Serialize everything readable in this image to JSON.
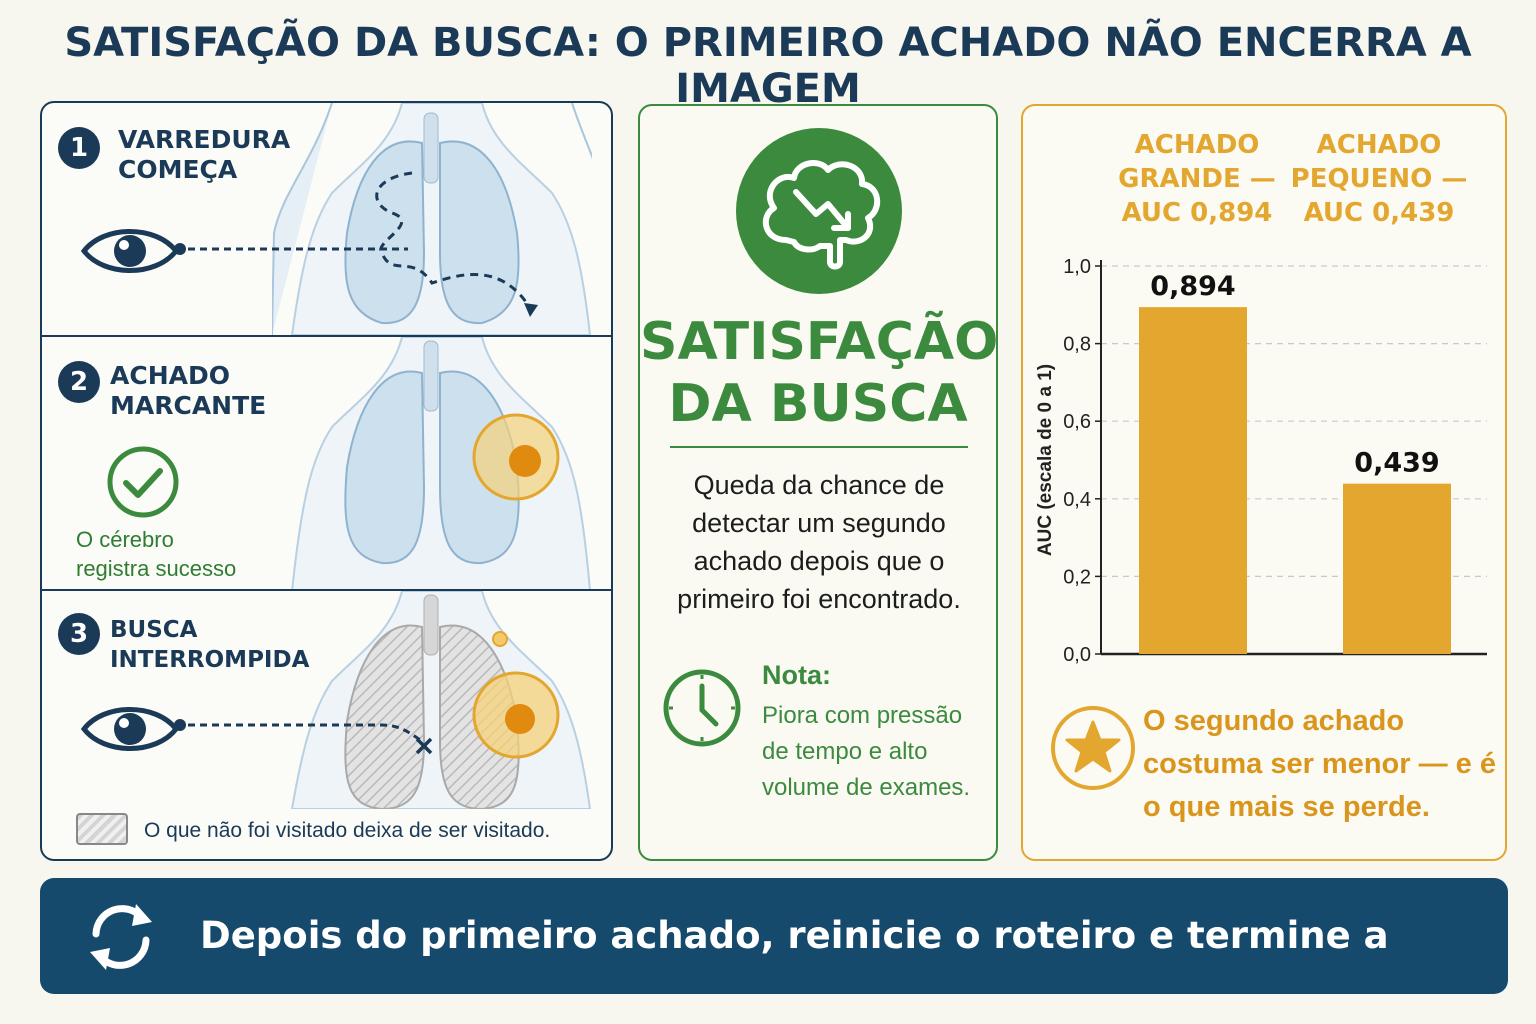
{
  "title": "SATISFAÇÃO DA BUSCA: O PRIMEIRO ACHADO NÃO ENCERRA A IMAGEM",
  "steps": [
    {
      "number": "1",
      "label": "VARREDURA\nCOMEÇA",
      "icon": "eye-icon"
    },
    {
      "number": "2",
      "label": "ACHADO\nMARCANTE",
      "icon": "check-circle-icon",
      "caption": "O cérebro\nregistra sucesso"
    },
    {
      "number": "3",
      "label": "BUSCA\nINTERROMPIDA",
      "icon": "eye-icon"
    }
  ],
  "legend": {
    "text": "O que não foi visitado deixa de ser visitado."
  },
  "middle": {
    "title": "SATISFAÇÃO\nDA BUSCA",
    "description": "Queda da chance de detectar um segundo achado depois que o primeiro foi encontrado.",
    "note_title": "Nota:",
    "note_text": "Piora com pressão de tempo e alto volume de exames.",
    "icons": [
      "brain-down-arrow-icon",
      "clock-icon"
    ]
  },
  "right": {
    "headers": [
      {
        "line1": "ACHADO",
        "line2": "GRANDE —",
        "line3": "AUC 0,894"
      },
      {
        "line1": "ACHADO",
        "line2": "PEQUENO —",
        "line3": "AUC 0,439"
      }
    ],
    "note": "O segundo achado costuma ser menor — e é o que mais se perde.",
    "icon": "star-icon"
  },
  "chart_data": {
    "type": "bar",
    "categories": [
      "ACHADO GRANDE",
      "ACHADO PEQUENO"
    ],
    "values": [
      0.894,
      0.439
    ],
    "value_labels": [
      "0,894",
      "0,439"
    ],
    "ylabel": "AUC (escala de 0 a 1)",
    "ylim": [
      0,
      1
    ],
    "yticks": [
      "0,0",
      "0,2",
      "0,4",
      "0,6",
      "0,8",
      "1,0"
    ],
    "grid": true,
    "bar_color": "#e3a72f"
  },
  "footer": {
    "text": "Depois do primeiro achado, reinicie o roteiro e termine a varredura.",
    "icon": "refresh-icon"
  },
  "colors": {
    "navy": "#1b3a57",
    "green": "#3b8a3e",
    "gold": "#e3a72f",
    "footer_bg": "#164a6d"
  }
}
